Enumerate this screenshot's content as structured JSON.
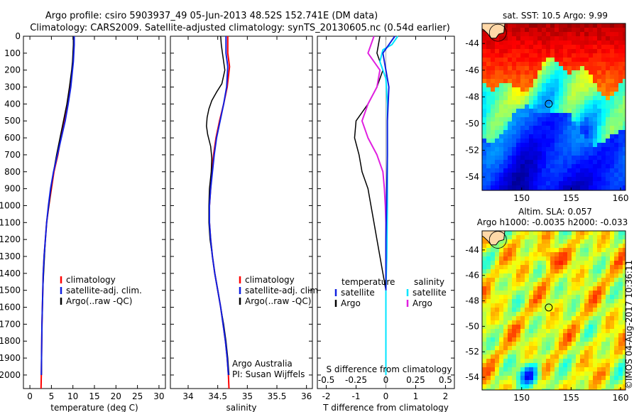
{
  "header": {
    "line1": "Argo profile: csiro 5903937_49 05-Jun-2013 48.52S 152.741E (DM data)",
    "line2": "Climatology: CARS2009. Satellite-adjusted climatology: synTS_20130605.nc (0.54d earlier)"
  },
  "colors": {
    "climatology": "#ff0000",
    "satellite": "#1020e0",
    "argo": "#000000",
    "sal_sat": "#00e5ff",
    "sal_argo": "#e020e0"
  },
  "chart_data": [
    {
      "type": "line",
      "id": "temperature",
      "xlabel": "temperature (deg C)",
      "ylabel": "",
      "xlim": [
        -1.5,
        31.5
      ],
      "ylim": [
        2080,
        0
      ],
      "x_ticks": [
        "0",
        "5",
        "10",
        "15",
        "20",
        "25",
        "30"
      ],
      "x_tick_values": [
        0,
        5,
        10,
        15,
        20,
        25,
        30
      ],
      "y_ticks": [
        "0",
        "100",
        "200",
        "300",
        "400",
        "500",
        "600",
        "700",
        "800",
        "900",
        "1000",
        "1100",
        "1200",
        "1300",
        "1400",
        "1500",
        "1600",
        "1700",
        "1800",
        "1900",
        "2000"
      ],
      "y_tick_values": [
        0,
        100,
        200,
        300,
        400,
        500,
        600,
        700,
        800,
        900,
        1000,
        1100,
        1200,
        1300,
        1400,
        1500,
        1600,
        1700,
        1800,
        1900,
        2000
      ],
      "legend": [
        "climatology",
        "satellite-adj. clim.",
        "Argo(..raw -QC)"
      ],
      "series": [
        {
          "name": "climatology",
          "color": "#ff0000",
          "width": 2,
          "points": [
            [
              10.2,
              0
            ],
            [
              10.2,
              50
            ],
            [
              10.1,
              100
            ],
            [
              10.0,
              150
            ],
            [
              9.8,
              200
            ],
            [
              9.4,
              300
            ],
            [
              8.8,
              400
            ],
            [
              8.0,
              500
            ],
            [
              7.2,
              600
            ],
            [
              6.5,
              700
            ],
            [
              5.6,
              800
            ],
            [
              5.0,
              900
            ],
            [
              4.4,
              1000
            ],
            [
              3.9,
              1100
            ],
            [
              3.6,
              1200
            ],
            [
              3.3,
              1300
            ],
            [
              3.1,
              1400
            ],
            [
              3.0,
              1500
            ],
            [
              2.9,
              1600
            ],
            [
              2.8,
              1700
            ],
            [
              2.75,
              1800
            ],
            [
              2.7,
              1900
            ],
            [
              2.65,
              2000
            ],
            [
              2.6,
              2080
            ]
          ]
        },
        {
          "name": "Argo(..raw -QC)",
          "color": "#000000",
          "width": 1.5,
          "points": [
            [
              10.1,
              0
            ],
            [
              10.1,
              50
            ],
            [
              10.0,
              100
            ],
            [
              9.9,
              150
            ],
            [
              9.7,
              200
            ],
            [
              9.2,
              300
            ],
            [
              8.6,
              400
            ],
            [
              7.8,
              500
            ],
            [
              7.0,
              600
            ],
            [
              6.2,
              700
            ],
            [
              5.5,
              800
            ],
            [
              4.9,
              900
            ],
            [
              4.4,
              1000
            ],
            [
              3.9,
              1100
            ],
            [
              3.6,
              1200
            ],
            [
              3.4,
              1300
            ],
            [
              3.2,
              1400
            ],
            [
              3.0,
              1500
            ],
            [
              2.9,
              1600
            ],
            [
              2.8,
              1700
            ],
            [
              2.75,
              1800
            ],
            [
              2.7,
              1900
            ],
            [
              2.7,
              2000
            ]
          ]
        },
        {
          "name": "satellite-adj. clim.",
          "color": "#1020e0",
          "width": 2,
          "points": [
            [
              10.3,
              0
            ],
            [
              10.3,
              50
            ],
            [
              10.2,
              100
            ],
            [
              10.1,
              150
            ],
            [
              9.9,
              200
            ],
            [
              9.5,
              300
            ],
            [
              8.9,
              400
            ],
            [
              8.2,
              500
            ],
            [
              7.3,
              600
            ],
            [
              6.4,
              700
            ],
            [
              5.5,
              800
            ],
            [
              4.8,
              900
            ],
            [
              4.3,
              1000
            ],
            [
              3.9,
              1100
            ],
            [
              3.6,
              1200
            ],
            [
              3.3,
              1300
            ],
            [
              3.1,
              1400
            ],
            [
              3.0,
              1500
            ],
            [
              2.9,
              1600
            ],
            [
              2.8,
              1700
            ],
            [
              2.75,
              1800
            ],
            [
              2.7,
              1900
            ],
            [
              2.65,
              2000
            ]
          ]
        }
      ]
    },
    {
      "type": "line",
      "id": "salinity",
      "xlabel": "salinity",
      "xlim": [
        33.7,
        36.1
      ],
      "ylim": [
        2080,
        0
      ],
      "x_ticks": [
        "34",
        "34.5",
        "35",
        "35.5",
        "36"
      ],
      "x_tick_values": [
        34,
        34.5,
        35,
        35.5,
        36
      ],
      "legend": [
        "climatology",
        "satellite-adj. clim.",
        "Argo(..raw -QC)"
      ],
      "annotation": [
        "Argo Australia",
        "PI: Susan Wijffels"
      ],
      "series": [
        {
          "name": "climatology",
          "color": "#ff0000",
          "width": 2,
          "points": [
            [
              34.67,
              0
            ],
            [
              34.67,
              100
            ],
            [
              34.7,
              180
            ],
            [
              34.66,
              300
            ],
            [
              34.6,
              400
            ],
            [
              34.53,
              500
            ],
            [
              34.47,
              600
            ],
            [
              34.43,
              700
            ],
            [
              34.4,
              800
            ],
            [
              34.38,
              900
            ],
            [
              34.36,
              1000
            ],
            [
              34.36,
              1100
            ],
            [
              34.38,
              1200
            ],
            [
              34.41,
              1300
            ],
            [
              34.45,
              1400
            ],
            [
              34.5,
              1500
            ],
            [
              34.55,
              1600
            ],
            [
              34.59,
              1700
            ],
            [
              34.63,
              1800
            ],
            [
              34.66,
              1900
            ],
            [
              34.68,
              2000
            ],
            [
              34.69,
              2080
            ]
          ]
        },
        {
          "name": "Argo(..raw -QC)",
          "color": "#000000",
          "width": 1.5,
          "points": [
            [
              34.55,
              0
            ],
            [
              34.56,
              50
            ],
            [
              34.58,
              100
            ],
            [
              34.6,
              150
            ],
            [
              34.62,
              200
            ],
            [
              34.57,
              280
            ],
            [
              34.48,
              330
            ],
            [
              34.4,
              380
            ],
            [
              34.35,
              430
            ],
            [
              34.32,
              480
            ],
            [
              34.31,
              530
            ],
            [
              34.33,
              580
            ],
            [
              34.38,
              650
            ],
            [
              34.4,
              720
            ],
            [
              34.39,
              800
            ],
            [
              34.36,
              900
            ],
            [
              34.35,
              1000
            ],
            [
              34.35,
              1100
            ],
            [
              34.37,
              1200
            ],
            [
              34.41,
              1300
            ],
            [
              34.45,
              1400
            ],
            [
              34.5,
              1500
            ],
            [
              34.55,
              1600
            ],
            [
              34.6,
              1700
            ],
            [
              34.64,
              1800
            ],
            [
              34.67,
              1900
            ],
            [
              34.69,
              2000
            ]
          ]
        },
        {
          "name": "satellite-adj. clim.",
          "color": "#1020e0",
          "width": 2,
          "points": [
            [
              34.64,
              0
            ],
            [
              34.64,
              100
            ],
            [
              34.67,
              180
            ],
            [
              34.65,
              300
            ],
            [
              34.6,
              400
            ],
            [
              34.54,
              500
            ],
            [
              34.48,
              600
            ],
            [
              34.44,
              700
            ],
            [
              34.41,
              800
            ],
            [
              34.38,
              900
            ],
            [
              34.36,
              1000
            ],
            [
              34.36,
              1100
            ],
            [
              34.38,
              1200
            ],
            [
              34.41,
              1300
            ],
            [
              34.45,
              1400
            ],
            [
              34.5,
              1500
            ],
            [
              34.55,
              1600
            ],
            [
              34.59,
              1700
            ],
            [
              34.63,
              1800
            ],
            [
              34.66,
              1900
            ],
            [
              34.68,
              2000
            ]
          ]
        }
      ]
    },
    {
      "type": "line",
      "id": "difference",
      "xlabel": "T difference from climatology",
      "xlabel_top": "S difference from climatology",
      "xlim": [
        -2.3,
        2.3
      ],
      "ylim": [
        2080,
        0
      ],
      "x_ticks": [
        "-2",
        "-1",
        "0",
        "1",
        "2"
      ],
      "x_tick_values": [
        -2,
        -1,
        0,
        1,
        2
      ],
      "x_ticks_secondary": [
        "-0.5",
        "-0.25",
        "0",
        "0.25",
        "0.5"
      ],
      "x_ticks_secondary_values": [
        -0.5,
        -0.25,
        0,
        0.25,
        0.5
      ],
      "secondary_scale": 4,
      "legend_left_title": "temperature",
      "legend_right_title": "salinity",
      "legend_left": [
        "satellite",
        "Argo"
      ],
      "legend_right": [
        "satellite",
        "Argo"
      ],
      "series": [
        {
          "name": "Argo T",
          "color": "#000000",
          "width": 1.5,
          "points": [
            [
              -0.2,
              0
            ],
            [
              -0.3,
              100
            ],
            [
              -0.1,
              200
            ],
            [
              -0.3,
              300
            ],
            [
              -0.6,
              400
            ],
            [
              -1.0,
              500
            ],
            [
              -1.05,
              600
            ],
            [
              -0.9,
              700
            ],
            [
              -0.8,
              800
            ],
            [
              -0.6,
              900
            ],
            [
              -0.5,
              1000
            ],
            [
              -0.4,
              1100
            ],
            [
              -0.3,
              1200
            ],
            [
              -0.2,
              1300
            ],
            [
              -0.1,
              1400
            ],
            [
              0.0,
              1500
            ]
          ]
        },
        {
          "name": "Argo S",
          "color": "#e020e0",
          "width": 2,
          "points": [
            [
              -0.4,
              0
            ],
            [
              -0.6,
              100
            ],
            [
              -0.2,
              200
            ],
            [
              -0.3,
              300
            ],
            [
              -0.6,
              400
            ],
            [
              -0.8,
              500
            ],
            [
              -0.6,
              600
            ],
            [
              -0.3,
              700
            ],
            [
              -0.1,
              800
            ],
            [
              -0.05,
              900
            ],
            [
              -0.02,
              1000
            ],
            [
              0.0,
              1100
            ],
            [
              0.0,
              1300
            ],
            [
              0.0,
              1500
            ]
          ]
        },
        {
          "name": "satellite S",
          "color": "#00e5ff",
          "width": 2,
          "points": [
            [
              0.4,
              0
            ],
            [
              0.2,
              50
            ],
            [
              -0.1,
              80
            ],
            [
              -0.2,
              150
            ],
            [
              0.0,
              250
            ],
            [
              0.05,
              400
            ],
            [
              0.05,
              600
            ],
            [
              0.05,
              800
            ],
            [
              0.05,
              1000
            ],
            [
              0.03,
              1300
            ],
            [
              0.0,
              1500
            ],
            [
              0.0,
              1800
            ],
            [
              0.0,
              2000
            ]
          ]
        },
        {
          "name": "satellite T",
          "color": "#1020e0",
          "width": 2,
          "points": [
            [
              0.3,
              0
            ],
            [
              0.1,
              50
            ],
            [
              -0.1,
              100
            ],
            [
              0.0,
              200
            ],
            [
              0.1,
              300
            ],
            [
              0.05,
              500
            ],
            [
              0.05,
              700
            ],
            [
              0.03,
              900
            ],
            [
              0.0,
              1200
            ],
            [
              0.0,
              1500
            ]
          ]
        }
      ]
    },
    {
      "type": "heatmap",
      "id": "sst_map",
      "title": "sat. SST: 10.5 Argo: 9.99",
      "xlim": [
        146,
        160.5
      ],
      "ylim": [
        -55,
        -42.5
      ],
      "x_ticks": [
        "150",
        "155",
        "160"
      ],
      "x_tick_values": [
        150,
        155,
        160
      ],
      "y_ticks": [
        "-44",
        "-46",
        "-48",
        "-50",
        "-52",
        "-54"
      ],
      "y_tick_values": [
        -44,
        -46,
        -48,
        -50,
        -52,
        -54
      ],
      "marker": [
        152.74,
        -48.52
      ]
    },
    {
      "type": "heatmap",
      "id": "sla_map",
      "title_line1": "Altim. SLA: 0.057",
      "title_line2": "Argo h1000: -0.0035 h2000: -0.033",
      "xlim": [
        146,
        160.5
      ],
      "ylim": [
        -55,
        -42.5
      ],
      "x_ticks": [
        "150",
        "155",
        "160"
      ],
      "x_tick_values": [
        150,
        155,
        160
      ],
      "y_ticks": [
        "-44",
        "-46",
        "-48",
        "-50",
        "-52",
        "-54"
      ],
      "y_tick_values": [
        -44,
        -46,
        -48,
        -50,
        -52,
        -54
      ],
      "marker": [
        152.74,
        -48.52
      ]
    }
  ],
  "credit": "©IMOS 04-Aug-2017 10:36:11"
}
